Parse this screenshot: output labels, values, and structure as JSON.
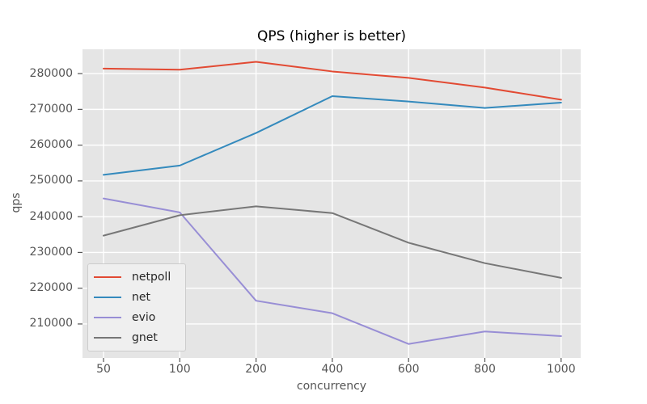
{
  "chart_data": {
    "type": "line",
    "title": "QPS (higher is better)",
    "xlabel": "concurrency",
    "ylabel": "qps",
    "categories": [
      "50",
      "100",
      "200",
      "400",
      "600",
      "800",
      "1000"
    ],
    "series": [
      {
        "name": "netpoll",
        "color": "#E24A33",
        "values": [
          281400,
          281100,
          283300,
          280600,
          278800,
          276100,
          272700
        ]
      },
      {
        "name": "net",
        "color": "#348ABD",
        "values": [
          251700,
          254300,
          263400,
          273700,
          272200,
          270400,
          271900
        ]
      },
      {
        "name": "evio",
        "color": "#988ED5",
        "values": [
          245100,
          241200,
          216500,
          213000,
          204400,
          207900,
          206600
        ]
      },
      {
        "name": "gnet",
        "color": "#777777",
        "values": [
          234700,
          240400,
          242900,
          241000,
          232700,
          227000,
          222900
        ]
      }
    ],
    "yticks": [
      210000,
      220000,
      230000,
      240000,
      250000,
      260000,
      270000,
      280000
    ],
    "ylim": [
      200500,
      286800
    ],
    "grid": true,
    "legend_position": "lower left",
    "colors": {
      "plot_background": "#E5E5E5",
      "grid": "#FFFFFF",
      "tick_text": "#555555",
      "axis_label_text": "#555555",
      "title_text": "#000000",
      "legend_background": "#EFEFEF",
      "legend_border": "#CCCCCC"
    }
  }
}
